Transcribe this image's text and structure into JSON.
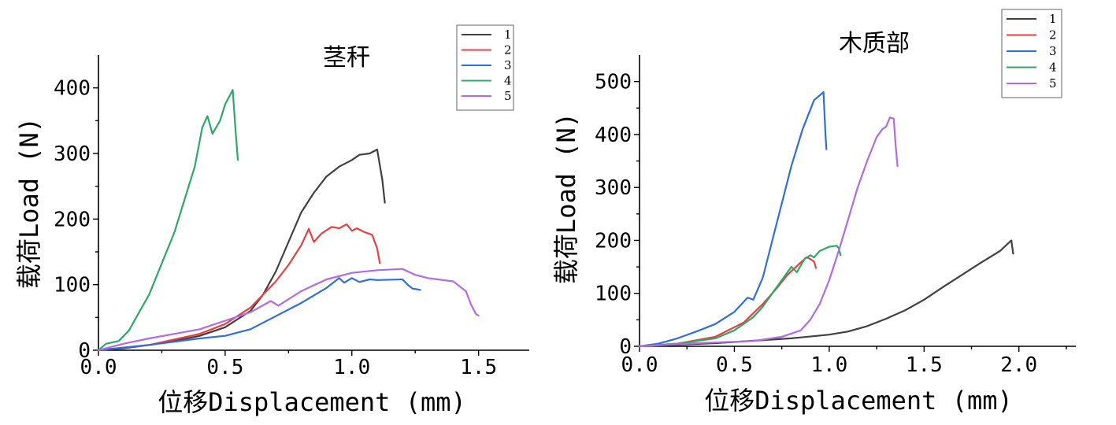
{
  "chart_data": [
    {
      "type": "line",
      "title": "茎秆",
      "xlabel": "位移Displacement (mm)",
      "ylabel": "载荷Load (N)",
      "xlim": [
        0,
        1.7
      ],
      "ylim": [
        0,
        450
      ],
      "xticks": [
        "0.0",
        "0.5",
        "1.0",
        "1.5"
      ],
      "xtick_values": [
        0,
        0.5,
        1.0,
        1.5
      ],
      "yticks": [
        "0",
        "100",
        "200",
        "300",
        "400"
      ],
      "ytick_values": [
        0,
        100,
        200,
        300,
        400
      ],
      "legend_position": "top-right",
      "series": [
        {
          "name": "1",
          "color": "#404040",
          "points": [
            [
              0,
              0
            ],
            [
              0.1,
              3
            ],
            [
              0.2,
              8
            ],
            [
              0.3,
              14
            ],
            [
              0.4,
              22
            ],
            [
              0.5,
              35
            ],
            [
              0.6,
              60
            ],
            [
              0.65,
              85
            ],
            [
              0.7,
              120
            ],
            [
              0.75,
              165
            ],
            [
              0.8,
              210
            ],
            [
              0.85,
              240
            ],
            [
              0.9,
              265
            ],
            [
              0.95,
              280
            ],
            [
              1.0,
              290
            ],
            [
              1.03,
              298
            ],
            [
              1.07,
              300
            ],
            [
              1.1,
              306
            ],
            [
              1.12,
              260
            ],
            [
              1.13,
              225
            ]
          ]
        },
        {
          "name": "2",
          "color": "#e84040",
          "points": [
            [
              0,
              0
            ],
            [
              0.2,
              8
            ],
            [
              0.4,
              25
            ],
            [
              0.5,
              40
            ],
            [
              0.6,
              65
            ],
            [
              0.7,
              105
            ],
            [
              0.75,
              130
            ],
            [
              0.8,
              160
            ],
            [
              0.83,
              185
            ],
            [
              0.85,
              165
            ],
            [
              0.88,
              178
            ],
            [
              0.92,
              188
            ],
            [
              0.95,
              186
            ],
            [
              0.98,
              192
            ],
            [
              1.0,
              182
            ],
            [
              1.02,
              186
            ],
            [
              1.05,
              180
            ],
            [
              1.08,
              176
            ],
            [
              1.1,
              155
            ],
            [
              1.11,
              133
            ]
          ]
        },
        {
          "name": "3",
          "color": "#2f6fd6",
          "points": [
            [
              0,
              0
            ],
            [
              0.2,
              8
            ],
            [
              0.4,
              18
            ],
            [
              0.5,
              22
            ],
            [
              0.6,
              32
            ],
            [
              0.7,
              52
            ],
            [
              0.8,
              72
            ],
            [
              0.9,
              95
            ],
            [
              0.95,
              110
            ],
            [
              0.97,
              103
            ],
            [
              1.0,
              110
            ],
            [
              1.03,
              104
            ],
            [
              1.07,
              108
            ],
            [
              1.1,
              107
            ],
            [
              1.2,
              108
            ],
            [
              1.22,
              100
            ],
            [
              1.24,
              94
            ],
            [
              1.27,
              92
            ]
          ]
        },
        {
          "name": "4",
          "color": "#2ea866",
          "points": [
            [
              0,
              0
            ],
            [
              0.03,
              10
            ],
            [
              0.08,
              14
            ],
            [
              0.12,
              30
            ],
            [
              0.2,
              85
            ],
            [
              0.3,
              180
            ],
            [
              0.38,
              280
            ],
            [
              0.41,
              340
            ],
            [
              0.43,
              357
            ],
            [
              0.45,
              330
            ],
            [
              0.48,
              350
            ],
            [
              0.5,
              375
            ],
            [
              0.53,
              397
            ],
            [
              0.54,
              340
            ],
            [
              0.55,
              290
            ]
          ]
        },
        {
          "name": "5",
          "color": "#b26be0",
          "points": [
            [
              0,
              0
            ],
            [
              0.1,
              10
            ],
            [
              0.2,
              18
            ],
            [
              0.3,
              25
            ],
            [
              0.4,
              32
            ],
            [
              0.5,
              45
            ],
            [
              0.6,
              58
            ],
            [
              0.68,
              75
            ],
            [
              0.71,
              68
            ],
            [
              0.8,
              90
            ],
            [
              0.9,
              108
            ],
            [
              1.0,
              118
            ],
            [
              1.1,
              122
            ],
            [
              1.2,
              124
            ],
            [
              1.25,
              115
            ],
            [
              1.3,
              110
            ],
            [
              1.4,
              105
            ],
            [
              1.45,
              90
            ],
            [
              1.47,
              70
            ],
            [
              1.49,
              55
            ],
            [
              1.5,
              53
            ]
          ]
        }
      ]
    },
    {
      "type": "line",
      "title": "木质部",
      "xlabel": "位移Displacement (mm)",
      "ylabel": "载荷Load (N)",
      "xlim": [
        0,
        2.3
      ],
      "ylim": [
        0,
        550
      ],
      "xticks": [
        "0.0",
        "0.5",
        "1.0",
        "1.5",
        "2.0"
      ],
      "xtick_values": [
        0,
        0.5,
        1.0,
        1.5,
        2.0
      ],
      "yticks": [
        "0",
        "100",
        "200",
        "300",
        "400",
        "500"
      ],
      "ytick_values": [
        0,
        100,
        200,
        300,
        400,
        500
      ],
      "legend_position": "top-right",
      "series": [
        {
          "name": "1",
          "color": "#404040",
          "points": [
            [
              0,
              0
            ],
            [
              0.4,
              6
            ],
            [
              0.8,
              15
            ],
            [
              1.0,
              22
            ],
            [
              1.1,
              28
            ],
            [
              1.2,
              38
            ],
            [
              1.3,
              52
            ],
            [
              1.4,
              68
            ],
            [
              1.5,
              88
            ],
            [
              1.6,
              112
            ],
            [
              1.7,
              135
            ],
            [
              1.8,
              158
            ],
            [
              1.9,
              180
            ],
            [
              1.96,
              200
            ],
            [
              1.97,
              175
            ]
          ]
        },
        {
          "name": "2",
          "color": "#e84040",
          "points": [
            [
              0,
              0
            ],
            [
              0.2,
              5
            ],
            [
              0.4,
              18
            ],
            [
              0.55,
              45
            ],
            [
              0.65,
              80
            ],
            [
              0.72,
              108
            ],
            [
              0.78,
              135
            ],
            [
              0.84,
              155
            ],
            [
              0.88,
              168
            ],
            [
              0.9,
              165
            ],
            [
              0.92,
              160
            ],
            [
              0.93,
              148
            ]
          ]
        },
        {
          "name": "3",
          "color": "#2f6fd6",
          "points": [
            [
              0,
              0
            ],
            [
              0.1,
              5
            ],
            [
              0.15,
              10
            ],
            [
              0.2,
              15
            ],
            [
              0.3,
              28
            ],
            [
              0.4,
              42
            ],
            [
              0.5,
              65
            ],
            [
              0.57,
              92
            ],
            [
              0.6,
              88
            ],
            [
              0.65,
              130
            ],
            [
              0.7,
              200
            ],
            [
              0.75,
              270
            ],
            [
              0.8,
              340
            ],
            [
              0.86,
              410
            ],
            [
              0.92,
              465
            ],
            [
              0.97,
              480
            ],
            [
              0.98,
              400
            ],
            [
              0.985,
              372
            ]
          ]
        },
        {
          "name": "4",
          "color": "#2ea866",
          "points": [
            [
              0,
              0
            ],
            [
              0.2,
              5
            ],
            [
              0.4,
              15
            ],
            [
              0.5,
              30
            ],
            [
              0.6,
              55
            ],
            [
              0.65,
              75
            ],
            [
              0.7,
              100
            ],
            [
              0.75,
              125
            ],
            [
              0.8,
              150
            ],
            [
              0.83,
              140
            ],
            [
              0.87,
              165
            ],
            [
              0.9,
              172
            ],
            [
              0.92,
              168
            ],
            [
              0.95,
              180
            ],
            [
              1.0,
              188
            ],
            [
              1.04,
              190
            ],
            [
              1.05,
              185
            ],
            [
              1.06,
              172
            ]
          ]
        },
        {
          "name": "5",
          "color": "#b26be0",
          "points": [
            [
              0,
              0
            ],
            [
              0.3,
              6
            ],
            [
              0.6,
              10
            ],
            [
              0.75,
              18
            ],
            [
              0.85,
              30
            ],
            [
              0.9,
              50
            ],
            [
              0.95,
              80
            ],
            [
              1.0,
              125
            ],
            [
              1.05,
              180
            ],
            [
              1.1,
              240
            ],
            [
              1.15,
              300
            ],
            [
              1.2,
              350
            ],
            [
              1.25,
              395
            ],
            [
              1.28,
              410
            ],
            [
              1.3,
              415
            ],
            [
              1.32,
              432
            ],
            [
              1.34,
              430
            ],
            [
              1.35,
              380
            ],
            [
              1.36,
              340
            ]
          ]
        }
      ]
    }
  ]
}
